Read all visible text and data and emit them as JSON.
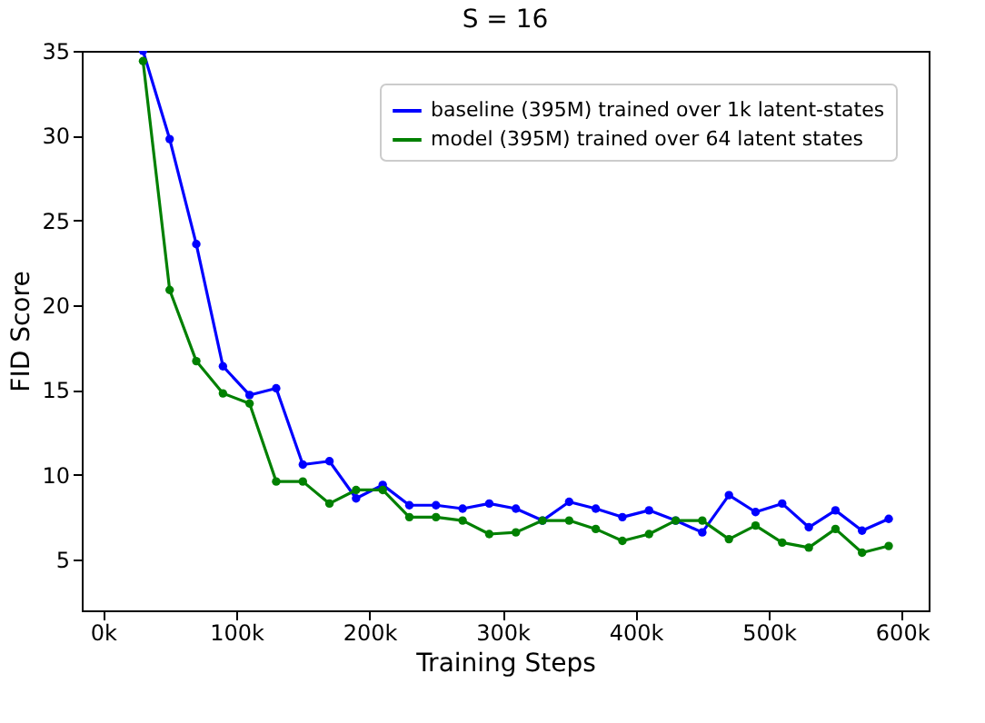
{
  "chart_data": {
    "type": "line",
    "title": "S = 16",
    "xlabel": "Training Steps",
    "ylabel": "FID Score",
    "x": [
      30000,
      50000,
      70000,
      90000,
      110000,
      130000,
      150000,
      170000,
      190000,
      210000,
      230000,
      250000,
      270000,
      290000,
      310000,
      330000,
      350000,
      370000,
      390000,
      410000,
      430000,
      450000,
      470000,
      490000,
      510000,
      530000,
      550000,
      570000,
      590000
    ],
    "series": [
      {
        "name": "baseline (395M) trained over 1k latent-states",
        "color": "#0000ff",
        "values": [
          35,
          29.8,
          23.6,
          16.4,
          14.7,
          15.1,
          10.6,
          10.8,
          8.6,
          9.4,
          8.2,
          8.2,
          8.0,
          8.3,
          8.0,
          7.3,
          8.4,
          8.0,
          7.5,
          7.9,
          7.3,
          6.6,
          8.8,
          7.8,
          8.3,
          6.9,
          7.9,
          6.7,
          7.4
        ]
      },
      {
        "name": "model (395M) trained over 64 latent states",
        "color": "#008000",
        "values": [
          34.4,
          20.9,
          16.7,
          14.8,
          14.2,
          9.6,
          9.6,
          8.3,
          9.1,
          9.1,
          7.5,
          7.5,
          7.3,
          6.5,
          6.6,
          7.3,
          7.3,
          6.8,
          6.1,
          6.5,
          7.3,
          7.3,
          6.2,
          7.0,
          6.0,
          5.7,
          6.8,
          5.4,
          5.8
        ]
      }
    ],
    "xlim": [
      -16000,
      620000
    ],
    "xticks": [
      {
        "value": 0,
        "label": "0k"
      },
      {
        "value": 100000,
        "label": "100k"
      },
      {
        "value": 200000,
        "label": "200k"
      },
      {
        "value": 300000,
        "label": "300k"
      },
      {
        "value": 400000,
        "label": "400k"
      },
      {
        "value": 500000,
        "label": "500k"
      },
      {
        "value": 600000,
        "label": "600k"
      }
    ],
    "ylim": [
      2,
      35
    ],
    "yticks": [
      5,
      10,
      15,
      20,
      25,
      30,
      35
    ],
    "legend": "top right",
    "marker": "circle",
    "line_style": "solid",
    "grid": false
  }
}
